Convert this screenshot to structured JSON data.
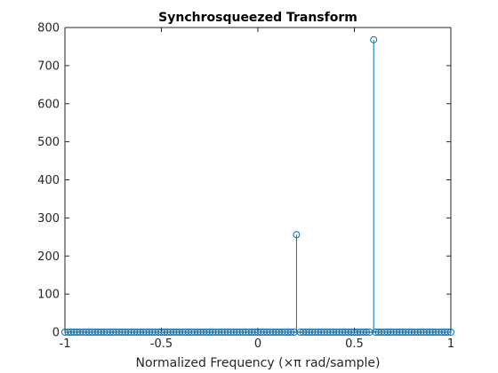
{
  "chart_data": {
    "type": "stem",
    "title": "Synchrosqueezed Transform",
    "xlabel": "Normalized Frequency (×π rad/sample)",
    "ylabel": "",
    "xlim": [
      -1,
      1
    ],
    "ylim": [
      0,
      800
    ],
    "xticks": [
      -1,
      -0.5,
      0,
      0.5,
      1
    ],
    "xtick_labels": [
      "-1",
      "-0.5",
      "0",
      "0.5",
      "1"
    ],
    "yticks": [
      0,
      100,
      200,
      300,
      400,
      500,
      600,
      700,
      800
    ],
    "ytick_labels": [
      "0",
      "100",
      "200",
      "300",
      "400",
      "500",
      "600",
      "700",
      "800"
    ],
    "grid": false,
    "series": [
      {
        "color": "#0072BD",
        "marker": "circle",
        "baseline_points": {
          "x_start": -1,
          "x_end": 1,
          "count": 129,
          "value": 0
        },
        "peaks": [
          {
            "x": 0.2,
            "y": 256
          },
          {
            "x": 0.6,
            "y": 768
          }
        ]
      }
    ]
  }
}
